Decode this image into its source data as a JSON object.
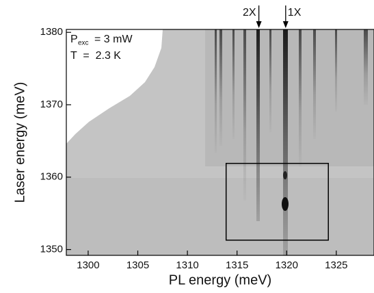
{
  "chart_data": {
    "type": "intensity-map",
    "x_label": "PL energy (meV)",
    "y_label": "Laser energy (meV)",
    "xlim": [
      1297.8,
      1328.8
    ],
    "ylim": [
      1349.2,
      1380.4
    ],
    "xticks": [
      1300,
      1305,
      1310,
      1315,
      1320,
      1325
    ],
    "yticks": [
      1350,
      1360,
      1370,
      1380
    ],
    "power_label": {
      "symbol": "P",
      "subscript": "exc",
      "value": "= 3 mW"
    },
    "temperature_label": "T  =  2.3 K",
    "markers": [
      {
        "label": "2X",
        "x": 1317.2
      },
      {
        "label": "1X",
        "x": 1319.9
      }
    ],
    "inset_box": {
      "xlim": [
        1313.9,
        1324.2
      ],
      "ylim": [
        1351.3,
        1361.9
      ]
    }
  }
}
